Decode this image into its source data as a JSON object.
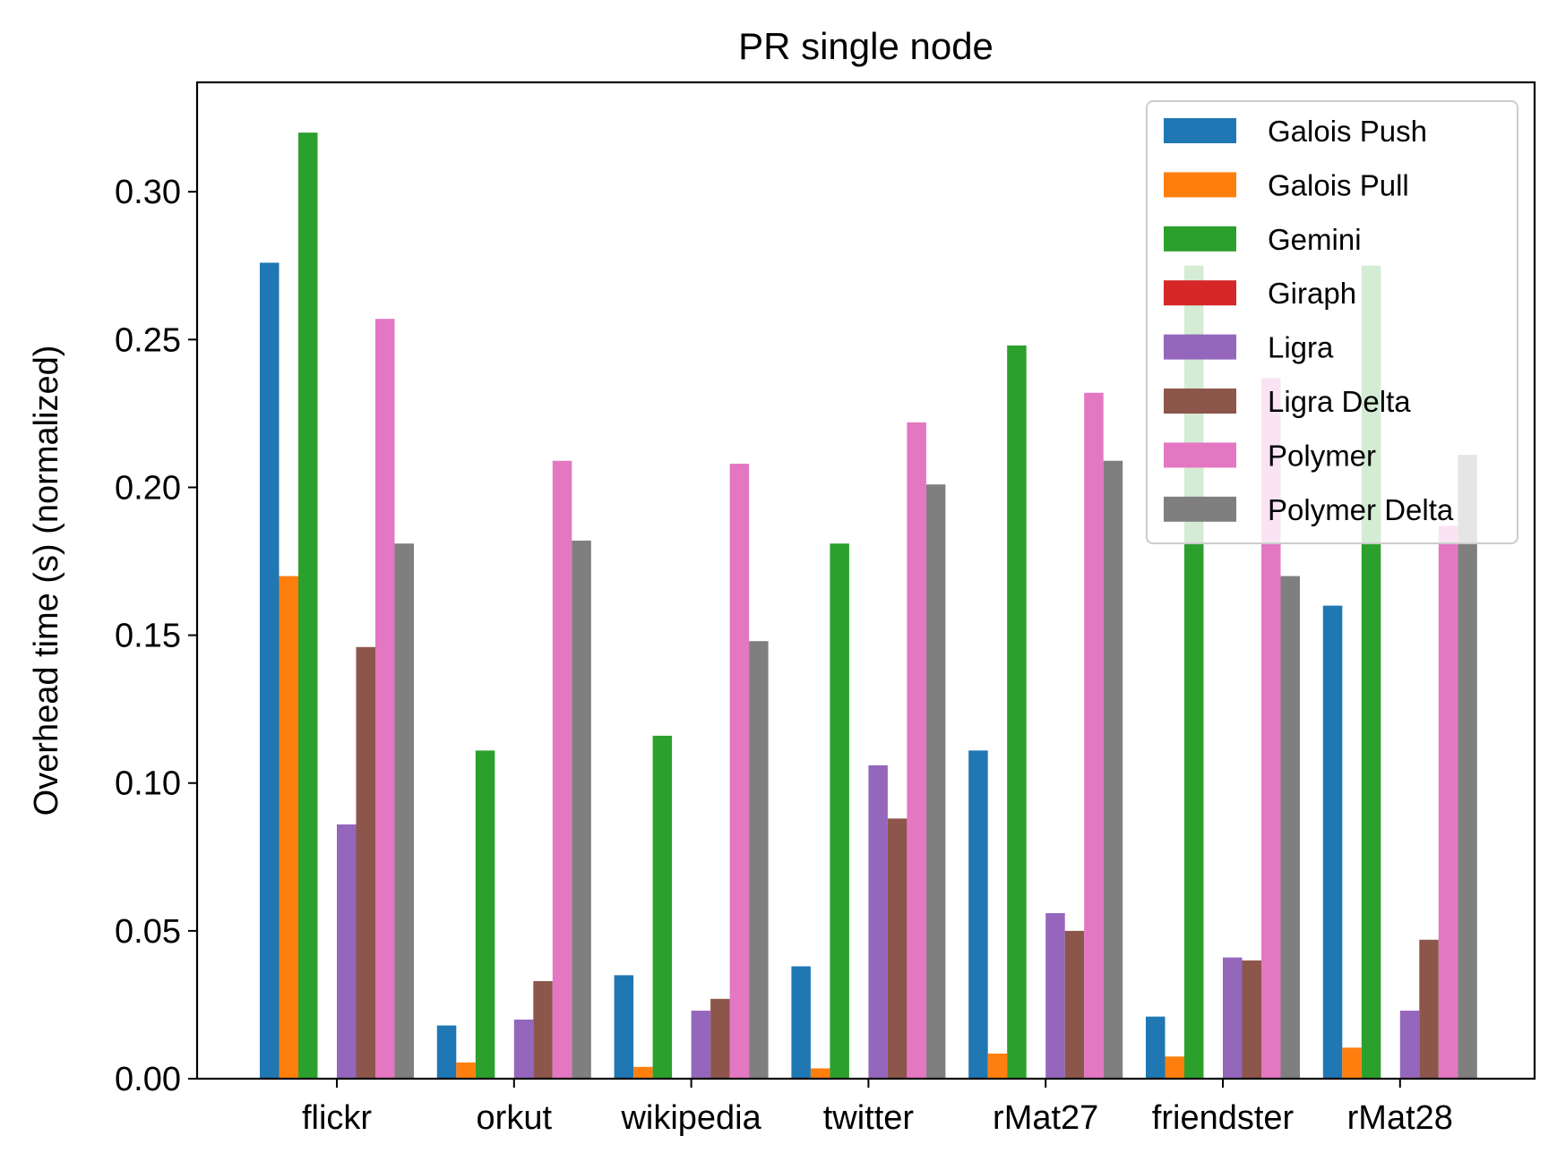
{
  "chart_data": {
    "type": "bar",
    "title": "PR single node",
    "xlabel": "",
    "ylabel": "Overhead time (s) (normalized)",
    "ylim": [
      0,
      0.337
    ],
    "yticks": [
      "0.00",
      "0.05",
      "0.10",
      "0.15",
      "0.20",
      "0.25",
      "0.30"
    ],
    "legend_position": "top-right",
    "categories": [
      "flickr",
      "orkut",
      "wikipedia",
      "twitter",
      "rMat27",
      "friendster",
      "rMat28"
    ],
    "series": [
      {
        "name": "Galois Push",
        "color": "#1f77b4",
        "values": [
          0.276,
          0.018,
          0.035,
          0.038,
          0.111,
          0.021,
          0.16
        ]
      },
      {
        "name": "Galois Pull",
        "color": "#ff7f0e",
        "values": [
          0.17,
          0.0055,
          0.004,
          0.0035,
          0.0085,
          0.0075,
          0.0105
        ]
      },
      {
        "name": "Gemini",
        "color": "#2ca02c",
        "values": [
          0.32,
          0.111,
          0.116,
          0.181,
          0.248,
          0.275,
          0.275
        ]
      },
      {
        "name": "Giraph",
        "color": "#d62728",
        "values": [
          0,
          0,
          0,
          0,
          0,
          0,
          0
        ]
      },
      {
        "name": "Ligra",
        "color": "#9467bd",
        "values": [
          0.086,
          0.02,
          0.023,
          0.106,
          0.056,
          0.041,
          0.023
        ]
      },
      {
        "name": "Ligra Delta",
        "color": "#8c564b",
        "values": [
          0.146,
          0.033,
          0.027,
          0.088,
          0.05,
          0.04,
          0.047
        ]
      },
      {
        "name": "Polymer",
        "color": "#e377c2",
        "values": [
          0.257,
          0.209,
          0.208,
          0.222,
          0.232,
          0.237,
          0.187
        ]
      },
      {
        "name": "Polymer Delta",
        "color": "#7f7f7f",
        "values": [
          0.181,
          0.182,
          0.148,
          0.201,
          0.209,
          0.17,
          0.211
        ]
      }
    ]
  }
}
